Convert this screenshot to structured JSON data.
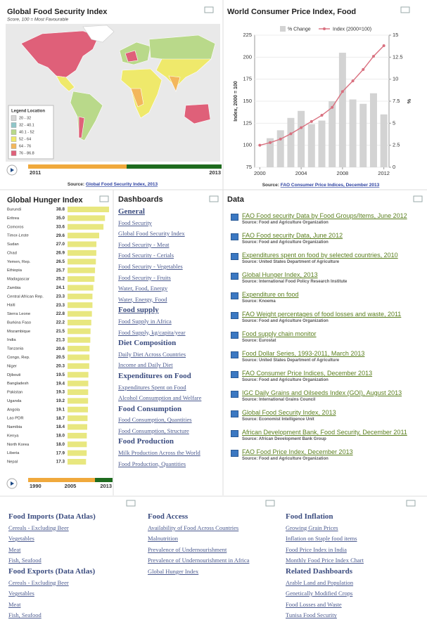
{
  "gfsi_map": {
    "title": "Global Food Security Index",
    "subtitle": "Score, 100 = Most Favourable",
    "legend_title": "Legend Location",
    "legend": [
      {
        "label": "20 - 32",
        "color": "#d6d6d6"
      },
      {
        "label": "32 - 40.1",
        "color": "#8fc6c9"
      },
      {
        "label": "40.1 - 52",
        "color": "#b9d98a"
      },
      {
        "label": "52 - 64",
        "color": "#efe96b"
      },
      {
        "label": "64 - 76",
        "color": "#f3b75c"
      },
      {
        "label": "76 - 86.8",
        "color": "#df6079"
      }
    ],
    "timeline": [
      "2011",
      "2013"
    ],
    "source": {
      "prefix": "Source:",
      "link": "Global Food Security Index, 2013"
    }
  },
  "chart_data": [
    {
      "type": "bar",
      "orientation": "horizontal",
      "title": "Global Hunger Index",
      "categories": [
        "Burundi",
        "Eritrea",
        "Comoros",
        "Timor-Leste",
        "Sudan",
        "Chad",
        "Yemen, Rep.",
        "Ethiopia",
        "Madagascar",
        "Zambia",
        "Central African Rep.",
        "Haiti",
        "Sierra Leone",
        "Burkina Faso",
        "Mozambique",
        "India",
        "Tanzania",
        "Congo, Rep.",
        "Niger",
        "Djibouti",
        "Bangladesh",
        "Pakistan",
        "Uganda",
        "Angola",
        "Lao PDR",
        "Namibia",
        "Kenya",
        "North Korea",
        "Liberia",
        "Nepal"
      ],
      "values": [
        38.8,
        35,
        33.6,
        29.6,
        27,
        26.9,
        26.5,
        25.7,
        25.2,
        24.1,
        23.3,
        23.3,
        22.8,
        22.2,
        21.5,
        21.3,
        20.6,
        20.5,
        20.3,
        19.5,
        19.4,
        19.3,
        19.2,
        19.1,
        18.7,
        18.4,
        18,
        18,
        17.9,
        17.3
      ],
      "value_labels": [
        "38.8",
        "35.0",
        "33.6",
        "29.6",
        "27.0",
        "26.9",
        "26.5",
        "25.7",
        "25.2",
        "24.1",
        "23.3",
        "23.3",
        "22.8",
        "22.2",
        "21.5",
        "21.3",
        "20.6",
        "20.5",
        "20.3",
        "19.5",
        "19.4",
        "19.3",
        "19.2",
        "19.1",
        "18.7",
        "18.4",
        "18.0",
        "18.0",
        "17.9",
        "17.3"
      ],
      "color": "#e8e77f",
      "timeline": [
        "1990",
        "2005",
        "2013"
      ]
    },
    {
      "type": "combo",
      "title": "World Consumer Price Index, Food",
      "x": [
        2000,
        2001,
        2002,
        2003,
        2004,
        2005,
        2006,
        2007,
        2008,
        2009,
        2010,
        2011,
        2012
      ],
      "xlim": [
        1999.5,
        2012.5
      ],
      "xticks": [
        2000,
        2004,
        2008,
        2012
      ],
      "ylabel": "Index, 2000 = 100",
      "ylim": [
        75,
        225
      ],
      "yticks": [
        75,
        100,
        125,
        150,
        175,
        200,
        225
      ],
      "y2label": "%",
      "y2lim": [
        0,
        15
      ],
      "y2ticks": [
        0,
        2.5,
        5,
        7.5,
        10,
        12.5,
        15
      ],
      "grid": true,
      "legend": "top",
      "series": [
        {
          "name": "% Change",
          "type": "bar",
          "axis": "y2",
          "color": "#d3d3d3",
          "values": [
            null,
            3.3,
            4.2,
            5.6,
            6.4,
            4.9,
            5.3,
            7.5,
            13,
            7.7,
            7.2,
            8.4,
            6
          ]
        },
        {
          "name": "Index (2000=100)",
          "type": "line",
          "color": "#d9707f",
          "values": [
            100,
            103,
            107,
            113,
            120,
            127,
            134,
            143,
            161,
            173,
            186,
            201,
            213
          ]
        }
      ],
      "source": {
        "prefix": "Source:",
        "link": "FAO Consumer Price Indices, December 2013"
      }
    }
  ],
  "dashboards": {
    "title": "Dashboards",
    "sections": [
      {
        "heading": "General",
        "linked": true,
        "links": [
          "Food Security",
          "Global Food Security Index",
          "Food Security - Meat",
          "Food Security - Cerials",
          "Food Security - Vegetables",
          "Food Security - Fruits",
          "Water, Food, Energy",
          "Water, Energy, Food"
        ]
      },
      {
        "heading": "Food supply",
        "linked": true,
        "links": [
          "Food Supply in Africa",
          "Food Supply, kg/capita/year"
        ]
      },
      {
        "heading": "Diet Composition",
        "linked": false,
        "links": [
          "Daily Diet Across Countries",
          "Income and Daily Diet"
        ]
      },
      {
        "heading": "Expenditures on Food",
        "linked": false,
        "links": [
          "Expenditures Spent on Food",
          "Alcohol Consumption and Welfare"
        ]
      },
      {
        "heading": "Food Consumption",
        "linked": false,
        "links": [
          "Food Consumption, Quantities",
          "Food Consumption, Structure"
        ]
      },
      {
        "heading": "Food Production",
        "linked": false,
        "links": [
          "Milk Production Across the World",
          "Food Production, Quantities"
        ]
      }
    ]
  },
  "data_panel": {
    "title": "Data",
    "items": [
      {
        "title": "FAO Food security Data by Food Groups/Items, June 2012",
        "source": "Source: Food and Agriculture Organization"
      },
      {
        "title": "FAO Food security Data, June 2012",
        "source": "Source: Food and Agriculture Organization"
      },
      {
        "title": "Expenditures spent on food by selected countries, 2010",
        "source": "Source: United States Department of Agriculture"
      },
      {
        "title": "Global Hunger Index, 2013",
        "source": "Source: International Food Policy Research Institute"
      },
      {
        "title": "Expenditure on food",
        "source": "Source: Knoema"
      },
      {
        "title": "FAO Weight percentages of food losses and waste, 2011",
        "source": "Source: Food and Agriculture Organization"
      },
      {
        "title": "Food supply chain monitor",
        "source": "Source: Eurostat"
      },
      {
        "title": "Food Dollar Series, 1993-2011, March 2013",
        "source": "Source: United States Department of Agriculture"
      },
      {
        "title": "FAO Consumer Price Indices, December 2013",
        "source": "Source: Food and Agriculture Organization"
      },
      {
        "title": "IGC Daily Grains and Oilseeds Index (GOI), August 2013",
        "source": "Source: International Grains Council"
      },
      {
        "title": "Global Food Security Index, 2013",
        "source": "Source: Economist Intelligence Unit"
      },
      {
        "title": "African Development Bank, Food Security, December 2011",
        "source": "Source: African Development Bank Group"
      },
      {
        "title": "FAO Food Price Index, December 2013",
        "source": "Source: Food and Agriculture Organization"
      }
    ]
  },
  "bottom": {
    "columns": [
      {
        "sections": [
          {
            "heading": "Food Imports (Data Atlas)",
            "links": [
              "Cereals - Excluding Beer",
              "Vegetables",
              "Meat",
              "Fish, Seafood"
            ]
          },
          {
            "heading": "Food Exports (Data Atlas)",
            "links": [
              "Cereals - Excluding Beer",
              "Vegetables",
              "Meat",
              "Fish, Seafood"
            ]
          }
        ]
      },
      {
        "sections": [
          {
            "heading": "Food Access",
            "links": [
              "Availability of Food Across Countries",
              "Malnutrition",
              "Prevalence of Undernourishment",
              "Prevalence of Undernourishment in Africa",
              "Global Hunger Index"
            ]
          }
        ]
      },
      {
        "sections": [
          {
            "heading": "Food Inflation",
            "links": [
              "Growing Grain Prices",
              "Inflation on Staple food items",
              "Food Price Index in India",
              "Monthly Food Price Index Chart"
            ]
          },
          {
            "heading": "Related Dashboards",
            "links": [
              "Arable Land and Population",
              "Genetically Modified Crops",
              "Food Losses and Waste",
              "Tunisa Food Security"
            ]
          }
        ]
      }
    ]
  }
}
